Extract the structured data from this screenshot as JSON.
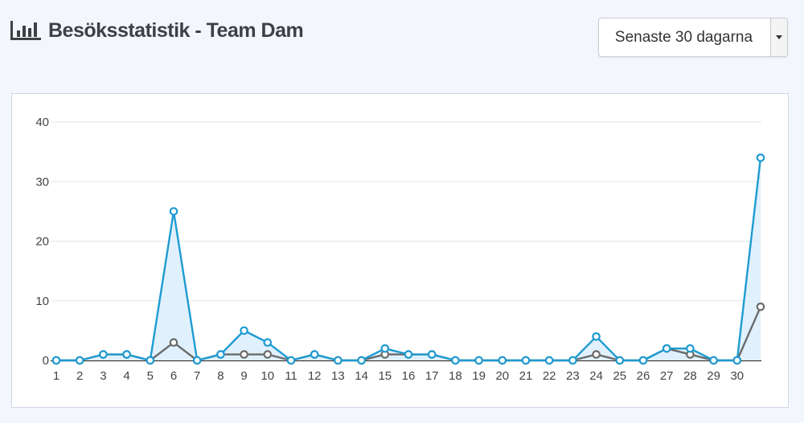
{
  "header": {
    "title": "Besöksstatistik - Team Dam",
    "icon": "bar-chart-icon"
  },
  "period_select": {
    "value": "Senaste 30 dagarna"
  },
  "colors": {
    "page_bg": "#f3f6fc",
    "series_primary": "#1e9bd1",
    "series_primary_fill": "#dbeefd",
    "series_secondary": "#6b6b6b"
  },
  "chart_data": {
    "type": "line",
    "title": "",
    "xlabel": "",
    "ylabel": "",
    "x": [
      1,
      2,
      3,
      4,
      5,
      6,
      7,
      8,
      9,
      10,
      11,
      12,
      13,
      14,
      15,
      16,
      17,
      18,
      19,
      20,
      21,
      22,
      23,
      24,
      25,
      26,
      27,
      28,
      29,
      30,
      31
    ],
    "x_tick_labels": [
      "1",
      "2",
      "3",
      "4",
      "5",
      "6",
      "7",
      "8",
      "9",
      "10",
      "11",
      "12",
      "13",
      "14",
      "15",
      "16",
      "17",
      "18",
      "19",
      "20",
      "21",
      "22",
      "23",
      "24",
      "25",
      "26",
      "27",
      "28",
      "29",
      "30"
    ],
    "y_ticks": [
      0,
      10,
      20,
      30,
      40
    ],
    "ylim": [
      0,
      40
    ],
    "grid": true,
    "series": [
      {
        "values": [
          0,
          0,
          1,
          1,
          0,
          25,
          0,
          1,
          5,
          3,
          0,
          1,
          0,
          0,
          2,
          1,
          1,
          0,
          0,
          0,
          0,
          0,
          0,
          4,
          0,
          0,
          2,
          2,
          0,
          0,
          34
        ],
        "color": "#1e9bd1",
        "filled": true
      },
      {
        "values": [
          0,
          0,
          1,
          1,
          0,
          3,
          0,
          1,
          1,
          1,
          0,
          1,
          0,
          0,
          1,
          1,
          1,
          0,
          0,
          0,
          0,
          0,
          0,
          1,
          0,
          0,
          2,
          1,
          0,
          0,
          9
        ],
        "color": "#6b6b6b",
        "filled": false
      }
    ]
  }
}
